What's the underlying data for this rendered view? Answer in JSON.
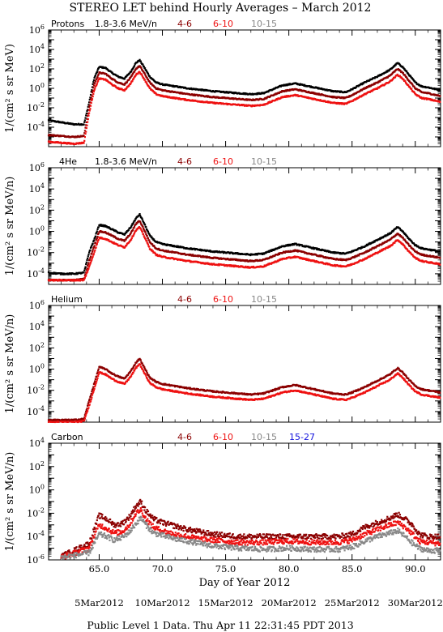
{
  "title": "STEREO LET behind Hourly Averages – March 2012",
  "colors": {
    "black": "#000000",
    "darkred": "#8b0000",
    "red": "#ee1111",
    "gray": "#888888",
    "blue": "#1111dd"
  },
  "ylabel": "1/(cm² s sr MeV/n)",
  "ylabel_top": "1/(cm² s sr MeV)",
  "xlabel": "Day of Year 2012",
  "xticks": [
    "65.0",
    "70.0",
    "75.0",
    "80.0",
    "85.0",
    "90.0"
  ],
  "date_labels": [
    "5Mar2012",
    "10Mar2012",
    "15Mar2012",
    "20Mar2012",
    "25Mar2012",
    "30Mar2012"
  ],
  "footer": "Public Level 1 Data. Thu Apr 11 22:31:45 PDT 2013",
  "chart_data": [
    {
      "type": "scatter",
      "species": "Protons",
      "xlim": [
        61,
        92
      ],
      "ylim_exp": [
        -6,
        6
      ],
      "ytick_exps": [
        -4,
        -2,
        0,
        2,
        4,
        6
      ],
      "series": [
        {
          "name": "1.8-3.6 MeV/n",
          "color": "black",
          "x": [
            61,
            62,
            63,
            63.8,
            64.2,
            64.6,
            65.0,
            65.5,
            66.0,
            66.5,
            67.0,
            67.5,
            67.9,
            68.2,
            68.5,
            69.0,
            69.5,
            70,
            72,
            74,
            76,
            77,
            78,
            79.5,
            80.5,
            82,
            83.5,
            84.5,
            85,
            86,
            87,
            88,
            88.6,
            89.0,
            89.5,
            90.0,
            90.5,
            91,
            92
          ],
          "y": [
            -3.3,
            -3.5,
            -3.7,
            -3.7,
            -1.5,
            1.0,
            2.2,
            2.1,
            1.6,
            1.2,
            1.0,
            1.7,
            2.6,
            2.9,
            2.3,
            1.2,
            0.6,
            0.4,
            0.0,
            -0.3,
            -0.5,
            -0.6,
            -0.5,
            0.3,
            0.5,
            0.1,
            -0.3,
            -0.4,
            -0.1,
            0.6,
            1.2,
            1.9,
            2.6,
            2.2,
            1.4,
            0.6,
            0.2,
            0.1,
            -0.2
          ]
        },
        {
          "name": "4-6",
          "color": "darkred",
          "x": [
            61,
            62,
            63,
            63.8,
            64.2,
            64.6,
            65.0,
            65.5,
            66.0,
            66.5,
            67.0,
            67.5,
            67.9,
            68.2,
            68.5,
            69.0,
            69.5,
            70,
            72,
            74,
            76,
            77,
            78,
            79.5,
            80.5,
            82,
            83.5,
            84.5,
            85,
            86,
            87,
            88,
            88.6,
            89.0,
            89.5,
            90.0,
            90.5,
            91,
            92
          ],
          "y": [
            -4.8,
            -4.9,
            -5.0,
            -4.9,
            -2.0,
            0.4,
            1.6,
            1.5,
            1.0,
            0.6,
            0.4,
            1.1,
            2.0,
            2.3,
            1.7,
            0.6,
            0.0,
            -0.2,
            -0.6,
            -0.9,
            -1.1,
            -1.2,
            -1.1,
            -0.3,
            -0.1,
            -0.5,
            -0.9,
            -1.0,
            -0.7,
            0.0,
            0.6,
            1.3,
            2.0,
            1.6,
            0.8,
            0.0,
            -0.4,
            -0.5,
            -0.8
          ]
        },
        {
          "name": "6-10",
          "color": "red",
          "x": [
            61,
            62,
            63,
            63.8,
            64.2,
            64.6,
            65.0,
            65.5,
            66.0,
            66.5,
            67.0,
            67.5,
            67.9,
            68.2,
            68.5,
            69.0,
            69.5,
            70,
            72,
            74,
            76,
            77,
            78,
            79.5,
            80.5,
            82,
            83.5,
            84.5,
            85,
            86,
            87,
            88,
            88.6,
            89.0,
            89.5,
            90.0,
            90.5,
            91,
            92
          ],
          "y": [
            -5.5,
            -5.6,
            -5.7,
            -5.6,
            -2.6,
            -0.2,
            1.0,
            0.9,
            0.4,
            0.0,
            -0.2,
            0.5,
            1.4,
            1.7,
            1.1,
            0.0,
            -0.6,
            -0.8,
            -1.2,
            -1.5,
            -1.7,
            -1.8,
            -1.7,
            -0.9,
            -0.7,
            -1.1,
            -1.5,
            -1.6,
            -1.3,
            -0.6,
            0.0,
            0.7,
            1.4,
            1.0,
            0.2,
            -0.6,
            -1.0,
            -1.1,
            -1.4
          ]
        },
        {
          "name": "10-15",
          "color": "gray",
          "x": [],
          "y": []
        }
      ]
    },
    {
      "type": "scatter",
      "species": "4He",
      "xlim": [
        61,
        92
      ],
      "ylim_exp": [
        -5,
        6
      ],
      "ytick_exps": [
        -4,
        -2,
        0,
        2,
        4,
        6
      ],
      "series": [
        {
          "name": "1.8-3.6 MeV/n",
          "color": "black",
          "x": [
            61,
            62,
            63,
            63.8,
            64.2,
            64.6,
            65.0,
            65.5,
            66.0,
            66.5,
            67.0,
            67.5,
            67.9,
            68.2,
            68.5,
            69.0,
            69.5,
            70,
            72,
            74,
            76,
            77,
            78,
            79.5,
            80.5,
            82,
            83.5,
            84.5,
            85,
            86,
            87,
            88,
            88.6,
            89.0,
            89.5,
            90.0,
            90.5,
            91,
            92
          ],
          "y": [
            -3.9,
            -4.0,
            -4.0,
            -3.9,
            -2.0,
            -0.8,
            0.6,
            0.5,
            0.2,
            -0.1,
            -0.3,
            0.4,
            1.2,
            1.6,
            0.9,
            -0.4,
            -1.0,
            -1.2,
            -1.6,
            -1.9,
            -2.1,
            -2.2,
            -2.1,
            -1.4,
            -1.2,
            -1.6,
            -2.0,
            -2.1,
            -1.9,
            -1.4,
            -0.8,
            -0.2,
            0.4,
            0.0,
            -0.7,
            -1.3,
            -1.6,
            -1.7,
            -1.9
          ]
        },
        {
          "name": "4-6",
          "color": "darkred",
          "x": [
            61,
            62,
            63,
            63.8,
            64.2,
            64.6,
            65.0,
            65.5,
            66.0,
            66.5,
            67.0,
            67.5,
            67.9,
            68.2,
            68.5,
            69.0,
            69.5,
            70,
            72,
            74,
            76,
            77,
            78,
            79.5,
            80.5,
            82,
            83.5,
            84.5,
            85,
            86,
            87,
            88,
            88.6,
            89.0,
            89.5,
            90.0,
            90.5,
            91,
            92
          ],
          "y": [
            -4.6,
            -4.6,
            -4.6,
            -4.5,
            -2.8,
            -1.4,
            0.0,
            -0.1,
            -0.4,
            -0.7,
            -0.9,
            -0.2,
            0.7,
            1.0,
            0.3,
            -1.0,
            -1.6,
            -1.8,
            -2.2,
            -2.5,
            -2.7,
            -2.8,
            -2.7,
            -2.0,
            -1.8,
            -2.2,
            -2.6,
            -2.7,
            -2.5,
            -2.0,
            -1.4,
            -0.8,
            -0.2,
            -0.6,
            -1.3,
            -1.9,
            -2.2,
            -2.3,
            -2.5
          ]
        },
        {
          "name": "6-10",
          "color": "red",
          "x": [
            61,
            62,
            63,
            63.8,
            64.2,
            64.6,
            65.0,
            65.5,
            66.0,
            66.5,
            67.0,
            67.5,
            67.9,
            68.2,
            68.5,
            69.0,
            69.5,
            70,
            72,
            74,
            76,
            77,
            78,
            79.5,
            80.5,
            82,
            83.5,
            84.5,
            85,
            86,
            87,
            88,
            88.6,
            89.0,
            89.5,
            90.0,
            90.5,
            91,
            92
          ],
          "y": [
            -4.6,
            -4.6,
            -4.6,
            -4.6,
            -3.4,
            -2.0,
            -0.6,
            -0.7,
            -1.0,
            -1.3,
            -1.5,
            -0.8,
            0.1,
            0.4,
            -0.3,
            -1.6,
            -2.2,
            -2.4,
            -2.8,
            -3.1,
            -3.3,
            -3.4,
            -3.3,
            -2.6,
            -2.4,
            -2.8,
            -3.2,
            -3.3,
            -3.1,
            -2.6,
            -2.0,
            -1.4,
            -0.8,
            -1.2,
            -1.9,
            -2.5,
            -2.8,
            -2.9,
            -3.1
          ]
        },
        {
          "name": "10-15",
          "color": "gray",
          "x": [],
          "y": []
        }
      ]
    },
    {
      "type": "scatter",
      "species": "Helium",
      "xlim": [
        61,
        92
      ],
      "ylim_exp": [
        -5,
        6
      ],
      "ytick_exps": [
        -4,
        -2,
        0,
        2,
        4,
        6
      ],
      "series": [
        {
          "name": "4-6",
          "color": "darkred",
          "x": [
            61,
            62,
            63,
            63.8,
            64.2,
            64.6,
            65.0,
            65.5,
            66.0,
            66.5,
            67.0,
            67.5,
            67.9,
            68.2,
            68.5,
            69.0,
            69.5,
            70,
            72,
            74,
            76,
            77,
            78,
            79.5,
            80.5,
            82,
            83.5,
            84.5,
            85,
            86,
            87,
            88,
            88.6,
            89.0,
            89.5,
            90.0,
            90.5,
            91,
            92
          ],
          "y": [
            -4.8,
            -4.8,
            -4.8,
            -4.7,
            -3.0,
            -1.4,
            0.2,
            0.0,
            -0.4,
            -0.7,
            -0.9,
            -0.2,
            0.6,
            1.0,
            0.3,
            -0.8,
            -1.2,
            -1.4,
            -1.8,
            -2.1,
            -2.3,
            -2.4,
            -2.3,
            -1.7,
            -1.5,
            -1.9,
            -2.3,
            -2.4,
            -2.2,
            -1.7,
            -1.1,
            -0.5,
            0.1,
            -0.3,
            -1.0,
            -1.6,
            -1.9,
            -2.0,
            -2.2
          ]
        },
        {
          "name": "6-10",
          "color": "red",
          "x": [
            61,
            62,
            63,
            63.8,
            64.2,
            64.6,
            65.0,
            65.5,
            66.0,
            66.5,
            67.0,
            67.5,
            67.9,
            68.2,
            68.5,
            69.0,
            69.5,
            70,
            72,
            74,
            76,
            77,
            78,
            79.5,
            80.5,
            82,
            83.5,
            84.5,
            85,
            86,
            87,
            88,
            88.6,
            89.0,
            89.5,
            90.0,
            90.5,
            91,
            92
          ],
          "y": [
            -5.0,
            -5.0,
            -5.0,
            -4.9,
            -3.5,
            -1.9,
            -0.3,
            -0.5,
            -0.9,
            -1.2,
            -1.4,
            -0.7,
            0.1,
            0.5,
            -0.2,
            -1.3,
            -1.7,
            -1.9,
            -2.3,
            -2.6,
            -2.8,
            -2.9,
            -2.8,
            -2.2,
            -2.0,
            -2.4,
            -2.8,
            -2.9,
            -2.7,
            -2.2,
            -1.6,
            -1.0,
            -0.4,
            -0.8,
            -1.5,
            -2.1,
            -2.4,
            -2.5,
            -2.7
          ]
        },
        {
          "name": "10-15",
          "color": "gray",
          "x": [],
          "y": []
        }
      ]
    },
    {
      "type": "scatter",
      "species": "Carbon",
      "xlim": [
        61,
        92
      ],
      "ylim_exp": [
        -6,
        4
      ],
      "ytick_exps": [
        -6,
        -4,
        -2,
        0,
        2,
        4
      ],
      "series": [
        {
          "name": "4-6",
          "color": "darkred",
          "x": [
            62,
            64.2,
            65.0,
            65.6,
            66.2,
            66.8,
            67.4,
            67.9,
            68.3,
            68.7,
            69.3,
            70,
            71,
            72,
            73,
            74,
            76,
            78,
            80,
            82,
            84,
            85,
            86,
            87,
            88,
            88.6,
            89.2,
            89.8,
            90.3,
            91,
            92
          ],
          "y": [
            -5.7,
            -4.6,
            -2.2,
            -2.5,
            -3.0,
            -2.9,
            -2.3,
            -1.4,
            -1.0,
            -1.8,
            -2.5,
            -2.8,
            -3.1,
            -3.4,
            -3.6,
            -3.8,
            -4.0,
            -4.0,
            -4.0,
            -4.0,
            -4.0,
            -3.8,
            -3.2,
            -2.8,
            -2.4,
            -2.1,
            -2.5,
            -3.0,
            -3.8,
            -4.0,
            -4.0
          ]
        },
        {
          "name": "6-10",
          "color": "red",
          "x": [
            62,
            64.2,
            65.0,
            65.6,
            66.2,
            66.8,
            67.4,
            67.9,
            68.3,
            68.7,
            69.3,
            70,
            71,
            72,
            73,
            74,
            76,
            78,
            80,
            82,
            84,
            85,
            86,
            87,
            88,
            88.6,
            89.2,
            89.8,
            90.3,
            91,
            92
          ],
          "y": [
            -5.8,
            -5.0,
            -3.0,
            -3.3,
            -3.7,
            -3.6,
            -3.0,
            -2.0,
            -1.7,
            -2.5,
            -3.2,
            -3.5,
            -3.8,
            -4.0,
            -4.2,
            -4.3,
            -4.5,
            -4.5,
            -4.4,
            -4.5,
            -4.5,
            -4.3,
            -3.8,
            -3.4,
            -3.0,
            -2.8,
            -3.2,
            -3.8,
            -4.4,
            -4.5,
            -4.6
          ]
        },
        {
          "name": "10-15",
          "color": "gray",
          "x": [
            62,
            64.2,
            65.0,
            65.6,
            66.2,
            66.8,
            67.4,
            67.9,
            68.3,
            68.7,
            69.3,
            70,
            71,
            72,
            73,
            74,
            76,
            78,
            80,
            82,
            84,
            85,
            86,
            87,
            88,
            88.6,
            89.2,
            89.8,
            90.3,
            91,
            92
          ],
          "y": [
            -5.8,
            -5.4,
            -3.8,
            -4.0,
            -4.3,
            -4.1,
            -3.6,
            -2.9,
            -2.4,
            -3.0,
            -3.7,
            -3.9,
            -4.2,
            -4.4,
            -4.6,
            -4.8,
            -5.0,
            -5.1,
            -5.0,
            -5.1,
            -5.1,
            -4.9,
            -4.4,
            -4.0,
            -3.7,
            -3.5,
            -4.0,
            -4.6,
            -5.0,
            -5.2,
            -5.2
          ]
        },
        {
          "name": "15-27",
          "color": "blue",
          "x": [],
          "y": []
        }
      ]
    }
  ],
  "legends": [
    [
      {
        "text": "Protons",
        "color": "black"
      },
      {
        "text": "1.8-3.6 MeV/n",
        "color": "black"
      },
      {
        "text": "4-6",
        "color": "darkred"
      },
      {
        "text": "6-10",
        "color": "red"
      },
      {
        "text": "10-15",
        "color": "gray"
      }
    ],
    [
      {
        "text": "4He",
        "color": "black"
      },
      {
        "text": "1.8-3.6 MeV/n",
        "color": "black"
      },
      {
        "text": "4-6",
        "color": "darkred"
      },
      {
        "text": "6-10",
        "color": "red"
      },
      {
        "text": "10-15",
        "color": "gray"
      }
    ],
    [
      {
        "text": "Helium",
        "color": "black"
      },
      {
        "text": "4-6",
        "color": "darkred"
      },
      {
        "text": "6-10",
        "color": "red"
      },
      {
        "text": "10-15",
        "color": "gray"
      }
    ],
    [
      {
        "text": "Carbon",
        "color": "black"
      },
      {
        "text": "4-6",
        "color": "darkred"
      },
      {
        "text": "6-10",
        "color": "red"
      },
      {
        "text": "10-15",
        "color": "gray"
      },
      {
        "text": "15-27",
        "color": "blue"
      }
    ]
  ]
}
